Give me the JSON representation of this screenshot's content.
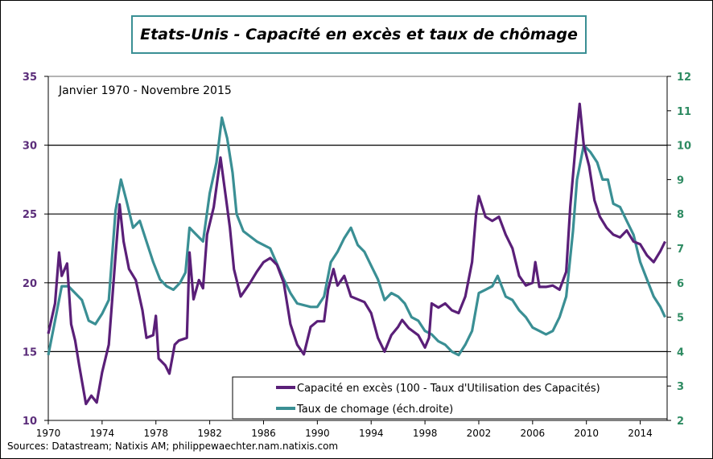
{
  "chart_data": {
    "type": "line",
    "title": "Etats-Unis - Capacité en excès et taux de chômage",
    "subtitle": "Janvier 1970 - Novembre 2015",
    "source": "Sources: Datastream; Natixis AM; philippewaechter.nam.natixis.com",
    "xlim": [
      1970,
      2016
    ],
    "x_ticks": [
      "1970",
      "1974",
      "1978",
      "1982",
      "1986",
      "1990",
      "1994",
      "1998",
      "2002",
      "2006",
      "2010",
      "2014"
    ],
    "y_left": {
      "range": [
        10,
        35
      ],
      "ticks": [
        "10",
        "15",
        "20",
        "25",
        "30",
        "35"
      ],
      "color": "#5b2d7a"
    },
    "y_right": {
      "range": [
        2,
        12
      ],
      "ticks": [
        "2",
        "3",
        "4",
        "5",
        "6",
        "7",
        "8",
        "9",
        "10",
        "11",
        "12"
      ],
      "color": "#2e8b62"
    },
    "grid": "horizontal",
    "legend_placement": "bottom-right",
    "series": [
      {
        "name": "Capacité en excès (100 - Taux d'Utilisation des Capacités)",
        "axis": "left",
        "color": "#5a1f78",
        "points": [
          [
            1970.0,
            16.3
          ],
          [
            1970.5,
            18.5
          ],
          [
            1970.8,
            22.2
          ],
          [
            1971.0,
            20.5
          ],
          [
            1971.4,
            21.4
          ],
          [
            1971.7,
            17
          ],
          [
            1972.0,
            15.8
          ],
          [
            1972.3,
            14
          ],
          [
            1972.8,
            11.2
          ],
          [
            1973.2,
            11.8
          ],
          [
            1973.6,
            11.3
          ],
          [
            1974.0,
            13.5
          ],
          [
            1974.5,
            15.5
          ],
          [
            1975.0,
            22
          ],
          [
            1975.3,
            25.7
          ],
          [
            1975.6,
            23
          ],
          [
            1976.0,
            21
          ],
          [
            1976.5,
            20.2
          ],
          [
            1977.0,
            18
          ],
          [
            1977.3,
            16
          ],
          [
            1977.8,
            16.2
          ],
          [
            1978.0,
            17.6
          ],
          [
            1978.2,
            14.5
          ],
          [
            1978.7,
            14
          ],
          [
            1979.0,
            13.4
          ],
          [
            1979.4,
            15.5
          ],
          [
            1979.7,
            15.8
          ],
          [
            1980.3,
            16
          ],
          [
            1980.5,
            22.2
          ],
          [
            1980.8,
            18.8
          ],
          [
            1981.2,
            20.2
          ],
          [
            1981.5,
            19.6
          ],
          [
            1981.8,
            23.5
          ],
          [
            1982.3,
            25.5
          ],
          [
            1982.8,
            29.1
          ],
          [
            1983.2,
            26.2
          ],
          [
            1983.5,
            24
          ],
          [
            1983.8,
            21
          ],
          [
            1984.3,
            19
          ],
          [
            1985.0,
            20
          ],
          [
            1985.5,
            20.8
          ],
          [
            1986.0,
            21.5
          ],
          [
            1986.5,
            21.8
          ],
          [
            1987.0,
            21.3
          ],
          [
            1987.5,
            20
          ],
          [
            1988.0,
            17
          ],
          [
            1988.5,
            15.5
          ],
          [
            1989.0,
            14.8
          ],
          [
            1989.5,
            16.8
          ],
          [
            1990.0,
            17.2
          ],
          [
            1990.5,
            17.2
          ],
          [
            1990.8,
            19.5
          ],
          [
            1991.2,
            21
          ],
          [
            1991.5,
            19.8
          ],
          [
            1992.0,
            20.5
          ],
          [
            1992.5,
            19
          ],
          [
            1993.0,
            18.8
          ],
          [
            1993.5,
            18.6
          ],
          [
            1994.0,
            17.8
          ],
          [
            1994.5,
            16
          ],
          [
            1995.0,
            15
          ],
          [
            1995.5,
            16.2
          ],
          [
            1996.0,
            16.8
          ],
          [
            1996.3,
            17.3
          ],
          [
            1996.8,
            16.7
          ],
          [
            1997.5,
            16.2
          ],
          [
            1998.0,
            15.3
          ],
          [
            1998.3,
            16
          ],
          [
            1998.5,
            18.5
          ],
          [
            1999.0,
            18.2
          ],
          [
            1999.5,
            18.5
          ],
          [
            2000.0,
            18
          ],
          [
            2000.5,
            17.8
          ],
          [
            2001.0,
            19
          ],
          [
            2001.5,
            21.5
          ],
          [
            2001.8,
            25
          ],
          [
            2002.0,
            26.3
          ],
          [
            2002.5,
            24.8
          ],
          [
            2003.0,
            24.5
          ],
          [
            2003.5,
            24.8
          ],
          [
            2004.0,
            23.5
          ],
          [
            2004.5,
            22.5
          ],
          [
            2005.0,
            20.5
          ],
          [
            2005.5,
            19.8
          ],
          [
            2006.0,
            20
          ],
          [
            2006.2,
            21.5
          ],
          [
            2006.5,
            19.7
          ],
          [
            2007.0,
            19.7
          ],
          [
            2007.5,
            19.8
          ],
          [
            2008.0,
            19.5
          ],
          [
            2008.5,
            20.8
          ],
          [
            2008.8,
            25.5
          ],
          [
            2009.2,
            30
          ],
          [
            2009.5,
            33
          ],
          [
            2009.8,
            30
          ],
          [
            2010.2,
            28.5
          ],
          [
            2010.6,
            26
          ],
          [
            2011.0,
            24.8
          ],
          [
            2011.5,
            24
          ],
          [
            2012.0,
            23.5
          ],
          [
            2012.5,
            23.3
          ],
          [
            2013.0,
            23.8
          ],
          [
            2013.5,
            23
          ],
          [
            2014.0,
            22.8
          ],
          [
            2014.5,
            22
          ],
          [
            2015.0,
            21.5
          ],
          [
            2015.5,
            22.3
          ],
          [
            2015.85,
            23
          ]
        ]
      },
      {
        "name": "Taux de chomage (éch.droite)",
        "axis": "right",
        "color": "#3a8f94",
        "points": [
          [
            1970.0,
            3.9
          ],
          [
            1970.5,
            4.9
          ],
          [
            1971.0,
            5.9
          ],
          [
            1971.5,
            5.9
          ],
          [
            1972.0,
            5.7
          ],
          [
            1972.5,
            5.5
          ],
          [
            1973.0,
            4.9
          ],
          [
            1973.5,
            4.8
          ],
          [
            1974.0,
            5.1
          ],
          [
            1974.5,
            5.5
          ],
          [
            1975.0,
            8.1
          ],
          [
            1975.4,
            9.0
          ],
          [
            1975.8,
            8.4
          ],
          [
            1976.3,
            7.6
          ],
          [
            1976.8,
            7.8
          ],
          [
            1977.3,
            7.2
          ],
          [
            1977.8,
            6.6
          ],
          [
            1978.3,
            6.1
          ],
          [
            1978.8,
            5.9
          ],
          [
            1979.3,
            5.8
          ],
          [
            1979.8,
            6.0
          ],
          [
            1980.2,
            6.3
          ],
          [
            1980.5,
            7.6
          ],
          [
            1981.0,
            7.4
          ],
          [
            1981.5,
            7.2
          ],
          [
            1982.0,
            8.6
          ],
          [
            1982.5,
            9.5
          ],
          [
            1982.9,
            10.8
          ],
          [
            1983.3,
            10.2
          ],
          [
            1983.7,
            9.2
          ],
          [
            1984.0,
            8.0
          ],
          [
            1984.5,
            7.5
          ],
          [
            1985.5,
            7.2
          ],
          [
            1986.5,
            7.0
          ],
          [
            1987.5,
            6.1
          ],
          [
            1988.0,
            5.7
          ],
          [
            1988.5,
            5.4
          ],
          [
            1989.5,
            5.3
          ],
          [
            1990.0,
            5.3
          ],
          [
            1990.5,
            5.6
          ],
          [
            1991.0,
            6.6
          ],
          [
            1991.5,
            6.9
          ],
          [
            1992.0,
            7.3
          ],
          [
            1992.5,
            7.6
          ],
          [
            1993.0,
            7.1
          ],
          [
            1993.5,
            6.9
          ],
          [
            1994.0,
            6.5
          ],
          [
            1994.5,
            6.1
          ],
          [
            1995.0,
            5.5
          ],
          [
            1995.5,
            5.7
          ],
          [
            1996.0,
            5.6
          ],
          [
            1996.5,
            5.4
          ],
          [
            1997.0,
            5.0
          ],
          [
            1997.5,
            4.9
          ],
          [
            1998.0,
            4.6
          ],
          [
            1998.5,
            4.5
          ],
          [
            1999.0,
            4.3
          ],
          [
            1999.5,
            4.2
          ],
          [
            2000.0,
            4.0
          ],
          [
            2000.5,
            3.9
          ],
          [
            2001.0,
            4.2
          ],
          [
            2001.5,
            4.6
          ],
          [
            2002.0,
            5.7
          ],
          [
            2002.5,
            5.8
          ],
          [
            2003.0,
            5.9
          ],
          [
            2003.4,
            6.2
          ],
          [
            2004.0,
            5.6
          ],
          [
            2004.5,
            5.5
          ],
          [
            2005.0,
            5.2
          ],
          [
            2005.5,
            5.0
          ],
          [
            2006.0,
            4.7
          ],
          [
            2006.5,
            4.6
          ],
          [
            2007.0,
            4.5
          ],
          [
            2007.5,
            4.6
          ],
          [
            2008.0,
            5.0
          ],
          [
            2008.5,
            5.6
          ],
          [
            2009.0,
            7.5
          ],
          [
            2009.3,
            9.0
          ],
          [
            2009.8,
            10.0
          ],
          [
            2010.3,
            9.8
          ],
          [
            2010.8,
            9.5
          ],
          [
            2011.2,
            9.0
          ],
          [
            2011.6,
            9.0
          ],
          [
            2012.0,
            8.3
          ],
          [
            2012.5,
            8.2
          ],
          [
            2013.0,
            7.8
          ],
          [
            2013.5,
            7.4
          ],
          [
            2014.0,
            6.6
          ],
          [
            2014.5,
            6.1
          ],
          [
            2015.0,
            5.6
          ],
          [
            2015.5,
            5.3
          ],
          [
            2015.85,
            5.0
          ]
        ]
      }
    ]
  }
}
